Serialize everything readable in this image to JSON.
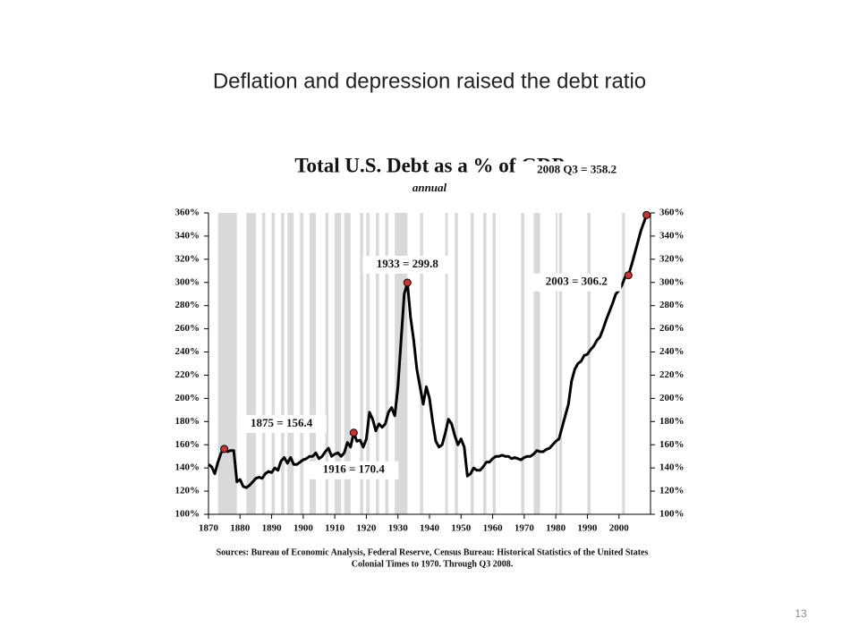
{
  "slide_title": "Deflation and depression raised the debt ratio",
  "page_number": "13",
  "chart_data": {
    "type": "line",
    "title": "Total U.S. Debt as a % of GDP",
    "subtitle": "annual",
    "sources": [
      "Sources: Bureau of Economic Analysis, Federal Reserve, Census Bureau: Historical Statistics of the United States",
      "Colonial Times to 1970.   Through Q3 2008."
    ],
    "xlim": [
      1870,
      2010
    ],
    "xticks": [
      1870,
      1880,
      1890,
      1900,
      1910,
      1920,
      1930,
      1940,
      1950,
      1960,
      1970,
      1980,
      1990,
      2000
    ],
    "ylim": [
      100,
      360
    ],
    "yticks": [
      {
        "value": 100,
        "label": "100%"
      },
      {
        "value": 120,
        "label": "120%"
      },
      {
        "value": 140,
        "label": "140%"
      },
      {
        "value": 160,
        "label": "160%"
      },
      {
        "value": 180,
        "label": "180%"
      },
      {
        "value": 200,
        "label": "200%"
      },
      {
        "value": 220,
        "label": "220%"
      },
      {
        "value": 240,
        "label": "240%"
      },
      {
        "value": 260,
        "label": "260%"
      },
      {
        "value": 280,
        "label": "280%"
      },
      {
        "value": 300,
        "label": "300%"
      },
      {
        "value": 320,
        "label": "320%"
      },
      {
        "value": 340,
        "label": "340%"
      },
      {
        "value": 360,
        "label": "360%"
      }
    ],
    "y2lim": [
      100,
      360
    ],
    "y2ticks": [
      {
        "value": 100,
        "label": "100%"
      },
      {
        "value": 120,
        "label": "120%"
      },
      {
        "value": 140,
        "label": "140%"
      },
      {
        "value": 160,
        "label": "160%"
      },
      {
        "value": 180,
        "label": "180%"
      },
      {
        "value": 200,
        "label": "200%"
      },
      {
        "value": 220,
        "label": "220%"
      },
      {
        "value": 240,
        "label": "240%"
      },
      {
        "value": 260,
        "label": "260%"
      },
      {
        "value": 280,
        "label": "280%"
      },
      {
        "value": 300,
        "label": "300%"
      },
      {
        "value": 320,
        "label": "320%"
      },
      {
        "value": 340,
        "label": "340%"
      },
      {
        "value": 360,
        "label": "360%"
      }
    ],
    "shaded_periods": [
      [
        1873,
        1879
      ],
      [
        1882,
        1885
      ],
      [
        1887,
        1888
      ],
      [
        1890,
        1891
      ],
      [
        1893,
        1894
      ],
      [
        1895,
        1897
      ],
      [
        1899,
        1900
      ],
      [
        1902,
        1904
      ],
      [
        1907,
        1908
      ],
      [
        1910,
        1912
      ],
      [
        1913,
        1915
      ],
      [
        1918,
        1919
      ],
      [
        1920,
        1921
      ],
      [
        1923,
        1924
      ],
      [
        1926,
        1927
      ],
      [
        1929,
        1933
      ],
      [
        1937,
        1938
      ],
      [
        1945,
        1945.8
      ],
      [
        1948,
        1949
      ],
      [
        1953,
        1954
      ],
      [
        1957,
        1958
      ],
      [
        1960,
        1961
      ],
      [
        1969,
        1970
      ],
      [
        1973,
        1975
      ],
      [
        1980,
        1980.5
      ],
      [
        1981,
        1982
      ],
      [
        1990,
        1991
      ],
      [
        2001,
        2001.9
      ]
    ],
    "shade_color": "#d9d9d9",
    "x": [
      1870,
      1871,
      1872,
      1873,
      1874,
      1875,
      1876,
      1877,
      1878,
      1879,
      1880,
      1881,
      1882,
      1883,
      1884,
      1885,
      1886,
      1887,
      1888,
      1889,
      1890,
      1891,
      1892,
      1893,
      1894,
      1895,
      1896,
      1897,
      1898,
      1899,
      1900,
      1901,
      1902,
      1903,
      1904,
      1905,
      1906,
      1907,
      1908,
      1909,
      1910,
      1911,
      1912,
      1913,
      1914,
      1915,
      1916,
      1917,
      1918,
      1919,
      1920,
      1921,
      1922,
      1923,
      1924,
      1925,
      1926,
      1927,
      1928,
      1929,
      1930,
      1931,
      1932,
      1933,
      1934,
      1935,
      1936,
      1937,
      1938,
      1939,
      1940,
      1941,
      1942,
      1943,
      1944,
      1945,
      1946,
      1947,
      1948,
      1949,
      1950,
      1951,
      1952,
      1953,
      1954,
      1955,
      1956,
      1957,
      1958,
      1959,
      1960,
      1961,
      1962,
      1963,
      1964,
      1965,
      1966,
      1967,
      1968,
      1969,
      1970,
      1971,
      1972,
      1973,
      1974,
      1975,
      1976,
      1977,
      1978,
      1979,
      1980,
      1981,
      1982,
      1983,
      1984,
      1985,
      1986,
      1987,
      1988,
      1989,
      1990,
      1991,
      1992,
      1993,
      1994,
      1995,
      1996,
      1997,
      1998,
      1999,
      2000,
      2001,
      2002,
      2003,
      2004,
      2005,
      2006,
      2007,
      2008.75
    ],
    "series": [
      {
        "name": "Total U.S. Debt as a % of GDP",
        "color": "#000000",
        "values": [
          143,
          141,
          135,
          145,
          153,
          156.4,
          154,
          155,
          155,
          128,
          130,
          124,
          123,
          125,
          128,
          131,
          132,
          131,
          135,
          137,
          136,
          140,
          138,
          146,
          149,
          144,
          149,
          143,
          143,
          145,
          147,
          148,
          150,
          150,
          153,
          148,
          150,
          154,
          157,
          150,
          152,
          153,
          150,
          153,
          162,
          158,
          170.4,
          163,
          164,
          158,
          165,
          188,
          182,
          172,
          178,
          175,
          178,
          188,
          192,
          185,
          210,
          250,
          290,
          299.8,
          270,
          250,
          225,
          210,
          195,
          210,
          200,
          180,
          163,
          158,
          160,
          170,
          182,
          178,
          168,
          160,
          165,
          158,
          133,
          135,
          140,
          138,
          138,
          141,
          145,
          145,
          148,
          150,
          150,
          151,
          150,
          150,
          148,
          149,
          148,
          147,
          149,
          150,
          150,
          152,
          155,
          154,
          154,
          156,
          157,
          160,
          163,
          165,
          175,
          185,
          195,
          215,
          225,
          230,
          232,
          237,
          238,
          242,
          245,
          250,
          253,
          260,
          268,
          275,
          282,
          290,
          293,
          298,
          305,
          306.2,
          315,
          325,
          335,
          345,
          358.2
        ]
      }
    ],
    "marker_color": "#d0312d",
    "annotations": [
      {
        "text": "1875 = 156.4",
        "x": 1875,
        "y": 156.4
      },
      {
        "text": "1916 = 170.4",
        "x": 1916,
        "y": 170.4
      },
      {
        "text": "1933 = 299.8",
        "x": 1933,
        "y": 299.8
      },
      {
        "text": "2003 = 306.2",
        "x": 2003,
        "y": 306.2
      },
      {
        "text": "2008 Q3 = 358.2",
        "x": 2008.75,
        "y": 358.2
      }
    ]
  }
}
